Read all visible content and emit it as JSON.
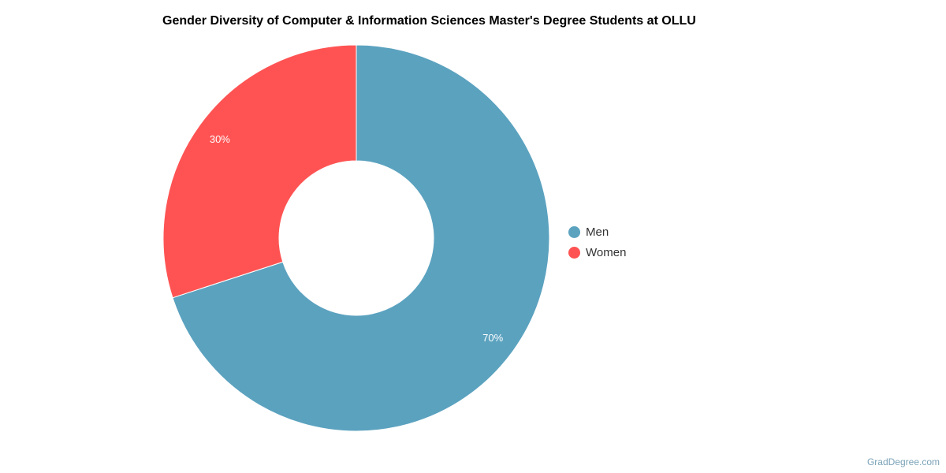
{
  "chart_data": {
    "type": "pie",
    "variant": "donut",
    "title": "Gender Diversity of Computer & Information Sciences Master's Degree Students at OLLU",
    "categories": [
      "Men",
      "Women"
    ],
    "values": [
      70,
      30
    ],
    "labels": [
      "70%",
      "30%"
    ],
    "colors": [
      "#5ba2bf",
      "#ff5353"
    ],
    "legend_position": "right"
  },
  "credit": "GradDegree.com"
}
